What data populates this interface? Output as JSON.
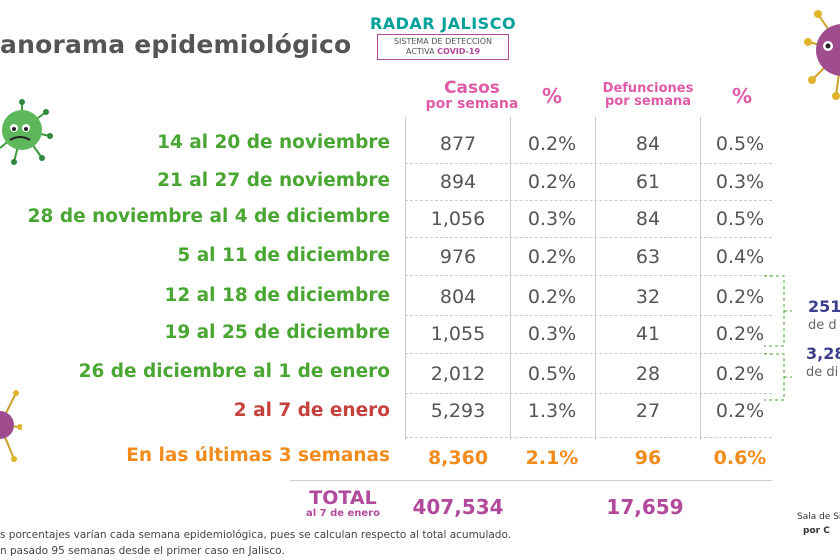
{
  "header": {
    "title": "anorama epidemiológico",
    "radar_name": "RADAR JALISCO",
    "radar_line1": "SISTEMA DE DETECCIÓN",
    "radar_line2": "ACTIVA",
    "radar_line2_bold": "COVID-19"
  },
  "table": {
    "col_cases_line1": "Casos",
    "col_cases_line2": "por semana",
    "col_cases_pct": "%",
    "col_deaths_line1": "Defunciones",
    "col_deaths_line2": "por semana",
    "col_deaths_pct": "%",
    "rows": [
      {
        "label": "14 al 20 de noviembre",
        "cases": "877",
        "cases_pct": "0.2%",
        "deaths": "84",
        "deaths_pct": "0.5%"
      },
      {
        "label": "21 al 27 de noviembre",
        "cases": "894",
        "cases_pct": "0.2%",
        "deaths": "61",
        "deaths_pct": "0.3%"
      },
      {
        "label": "28 de noviembre al 4 de diciembre",
        "cases": "1,056",
        "cases_pct": "0.3%",
        "deaths": "84",
        "deaths_pct": "0.5%"
      },
      {
        "label": "5 al 11 de diciembre",
        "cases": "976",
        "cases_pct": "0.2%",
        "deaths": "63",
        "deaths_pct": "0.4%"
      },
      {
        "label": "12 al 18 de diciembre",
        "cases": "804",
        "cases_pct": "0.2%",
        "deaths": "32",
        "deaths_pct": "0.2%"
      },
      {
        "label": "19 al 25 de diciembre",
        "cases": "1,055",
        "cases_pct": "0.3%",
        "deaths": "41",
        "deaths_pct": "0.2%"
      },
      {
        "label": "26 de diciembre al 1 de enero",
        "cases": "2,012",
        "cases_pct": "0.5%",
        "deaths": "28",
        "deaths_pct": "0.2%"
      },
      {
        "label": "2 al 7 de enero",
        "cases": "5,293",
        "cases_pct": "1.3%",
        "deaths": "27",
        "deaths_pct": "0.2%"
      }
    ],
    "summary": {
      "label": "En las últimas 3 semanas",
      "cases": "8,360",
      "cases_pct": "2.1%",
      "deaths": "96",
      "deaths_pct": "0.6%"
    },
    "total_label": "TOTAL",
    "total_sub": "al 7 de enero",
    "total_cases": "407,534",
    "total_deaths": "17,659"
  },
  "side_notes": [
    {
      "value": "251",
      "sub": "de d"
    },
    {
      "value": "3,28",
      "sub": "de di"
    }
  ],
  "footer": {
    "line1": "s porcentajes varían cada semana epidemiológica, pues se calculan respecto al total acumulado.",
    "line2": "n pasado 95 semanas desde el primer caso en Jalisco.",
    "sala_line1": "Sala de Si",
    "sala_line2": "por C"
  },
  "colors": {
    "green": "#4aa632",
    "red": "#c6413b",
    "orange": "#f28c1c",
    "magenta": "#e05aa8",
    "purple": "#b24a9c",
    "teal": "#00a19a",
    "navy": "#3b3e8a"
  },
  "icons": [
    "virus-icon-top-left",
    "virus-icon-top-right",
    "virus-icon-bottom-left"
  ]
}
